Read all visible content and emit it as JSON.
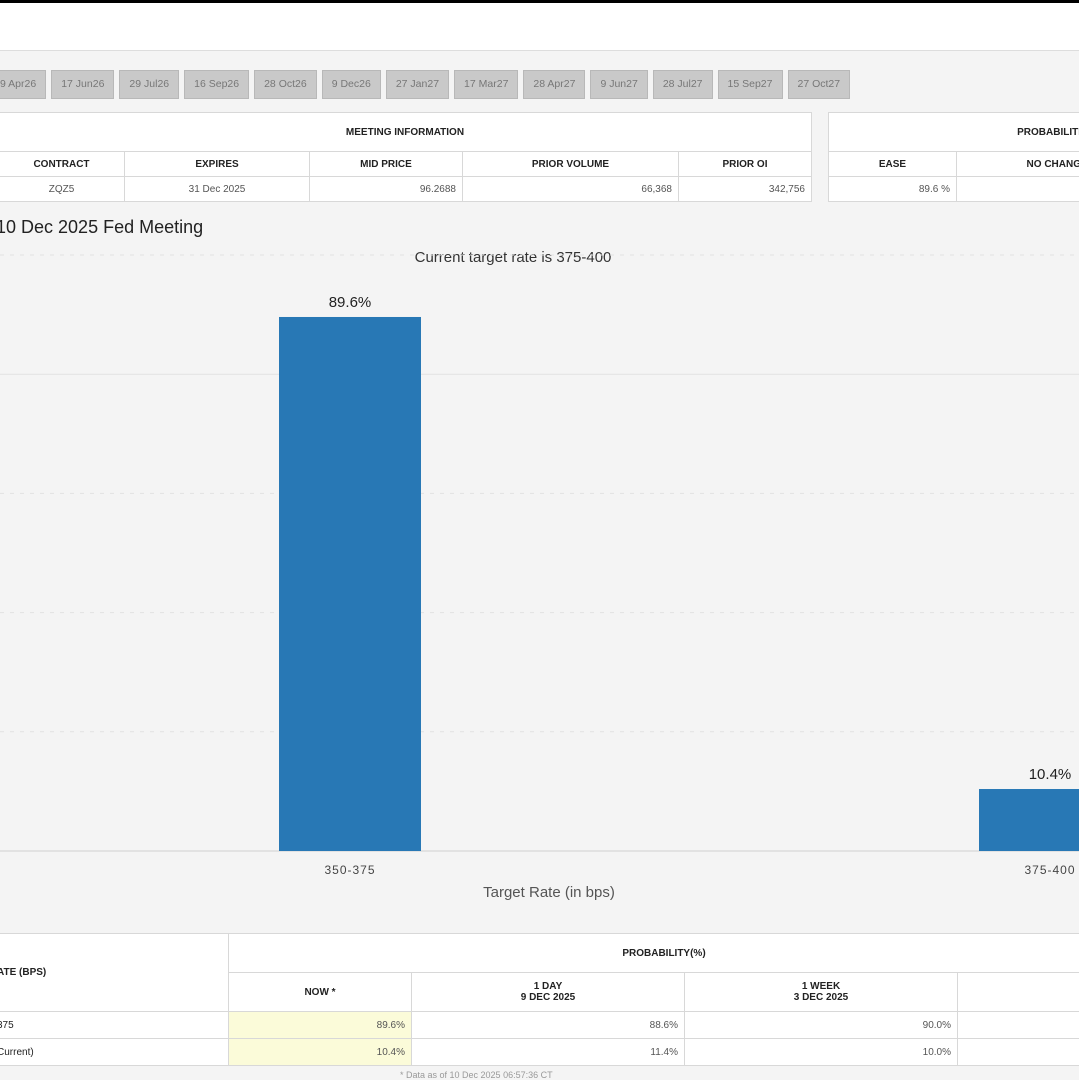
{
  "tabs": [
    "9 Apr26",
    "17 Jun26",
    "29 Jul26",
    "16 Sep26",
    "28 Oct26",
    "9 Dec26",
    "27 Jan27",
    "17 Mar27",
    "28 Apr27",
    "9 Jun27",
    "28 Jul27",
    "15 Sep27",
    "27 Oct27"
  ],
  "meeting_info": {
    "title": "MEETING INFORMATION",
    "headers": [
      "CONTRACT",
      "EXPIRES",
      "MID PRICE",
      "PRIOR VOLUME",
      "PRIOR OI"
    ],
    "row": [
      "ZQZ5",
      "31 Dec 2025",
      "96.2688",
      "66,368",
      "342,756"
    ]
  },
  "probabilities_box": {
    "title": "PROBABILITI",
    "headers": [
      "EASE",
      "NO CHANG"
    ],
    "row": [
      "89.6 %",
      ""
    ]
  },
  "chart_heading": "10 Dec 2025 Fed Meeting",
  "chart_data": {
    "type": "bar",
    "title": "Current target rate is 375-400",
    "xlabel": "Target Rate (in bps)",
    "ylabel": "",
    "categories": [
      "350-375",
      "375-400"
    ],
    "values": [
      89.6,
      10.4
    ],
    "data_labels": [
      "89.6%",
      "10.4%"
    ],
    "ylim": [
      0,
      100
    ],
    "bar_color": "#2878b5",
    "grid": true
  },
  "bottom_table": {
    "rate_header": "ATE (BPS)",
    "prob_header": "PROBABILITY(%)",
    "columns": [
      {
        "line1": "NOW *",
        "line2": ""
      },
      {
        "line1": "1 DAY",
        "line2": "9 DEC 2025"
      },
      {
        "line1": "1 WEEK",
        "line2": "3 DEC 2025"
      }
    ],
    "rows": [
      {
        "rate": "375",
        "values": [
          "89.6%",
          "88.6%",
          "90.0%"
        ]
      },
      {
        "rate": "Current)",
        "values": [
          "10.4%",
          "11.4%",
          "10.0%"
        ]
      }
    ]
  },
  "footnote": "* Data as of 10 Dec 2025 06:57:36 CT"
}
